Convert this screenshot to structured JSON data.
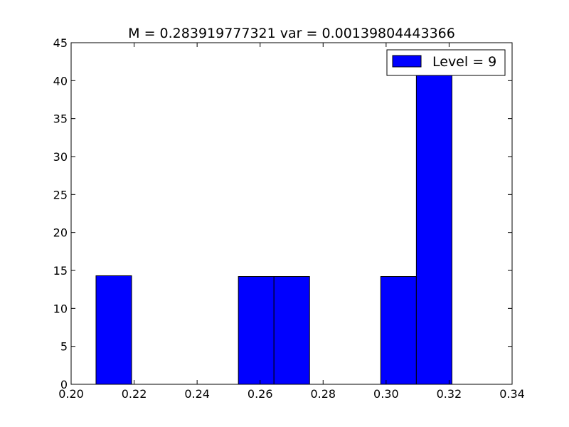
{
  "chart_data": {
    "type": "bar",
    "title": "M = 0.283919777321 var = 0.00139804443366",
    "xlabel": "",
    "ylabel": "",
    "xlim": [
      0.2,
      0.34
    ],
    "ylim": [
      0,
      45
    ],
    "xticks": [
      "0.20",
      "0.22",
      "0.24",
      "0.26",
      "0.28",
      "0.30",
      "0.32",
      "0.34"
    ],
    "yticks": [
      "0",
      "5",
      "10",
      "15",
      "20",
      "25",
      "30",
      "35",
      "40",
      "45"
    ],
    "grid": false,
    "legend": {
      "position": "top-right",
      "entries": [
        "Level = 9"
      ]
    },
    "series": [
      {
        "name": "Level = 9",
        "color": "#0000ff",
        "bins": [
          {
            "x0": 0.2079,
            "x1": 0.2192,
            "value": 14.3
          },
          {
            "x0": 0.2531,
            "x1": 0.2644,
            "value": 14.2
          },
          {
            "x0": 0.2644,
            "x1": 0.2757,
            "value": 14.2
          },
          {
            "x0": 0.2983,
            "x1": 0.3096,
            "value": 14.2
          },
          {
            "x0": 0.3096,
            "x1": 0.3209,
            "value": 42.9
          }
        ]
      }
    ]
  }
}
